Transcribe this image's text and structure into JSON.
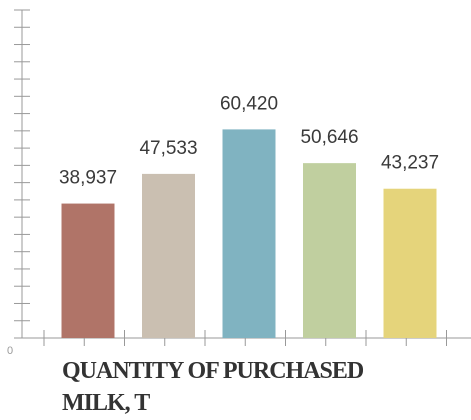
{
  "chart_data": {
    "type": "bar",
    "title_lines": [
      "QUANTITY OF PURCHASED",
      "MILK, T"
    ],
    "categories": [
      null,
      null,
      null,
      null,
      null
    ],
    "values": [
      38937,
      47533,
      60420,
      50646,
      43237
    ],
    "value_labels": [
      "38,937",
      "47,533",
      "60,420",
      "50,646",
      "43,237"
    ],
    "colors": [
      "#b07468",
      "#cabfb1",
      "#80b3c1",
      "#c0cf9f",
      "#e5d47b"
    ],
    "ylim": [
      0,
      95000
    ],
    "yticks": [
      0
    ],
    "y_minor_ticks": [
      5000,
      10000,
      15000,
      20000,
      25000,
      30000,
      35000,
      40000,
      45000,
      50000,
      55000,
      60000,
      65000,
      70000,
      75000,
      80000,
      85000,
      90000,
      95000
    ]
  }
}
